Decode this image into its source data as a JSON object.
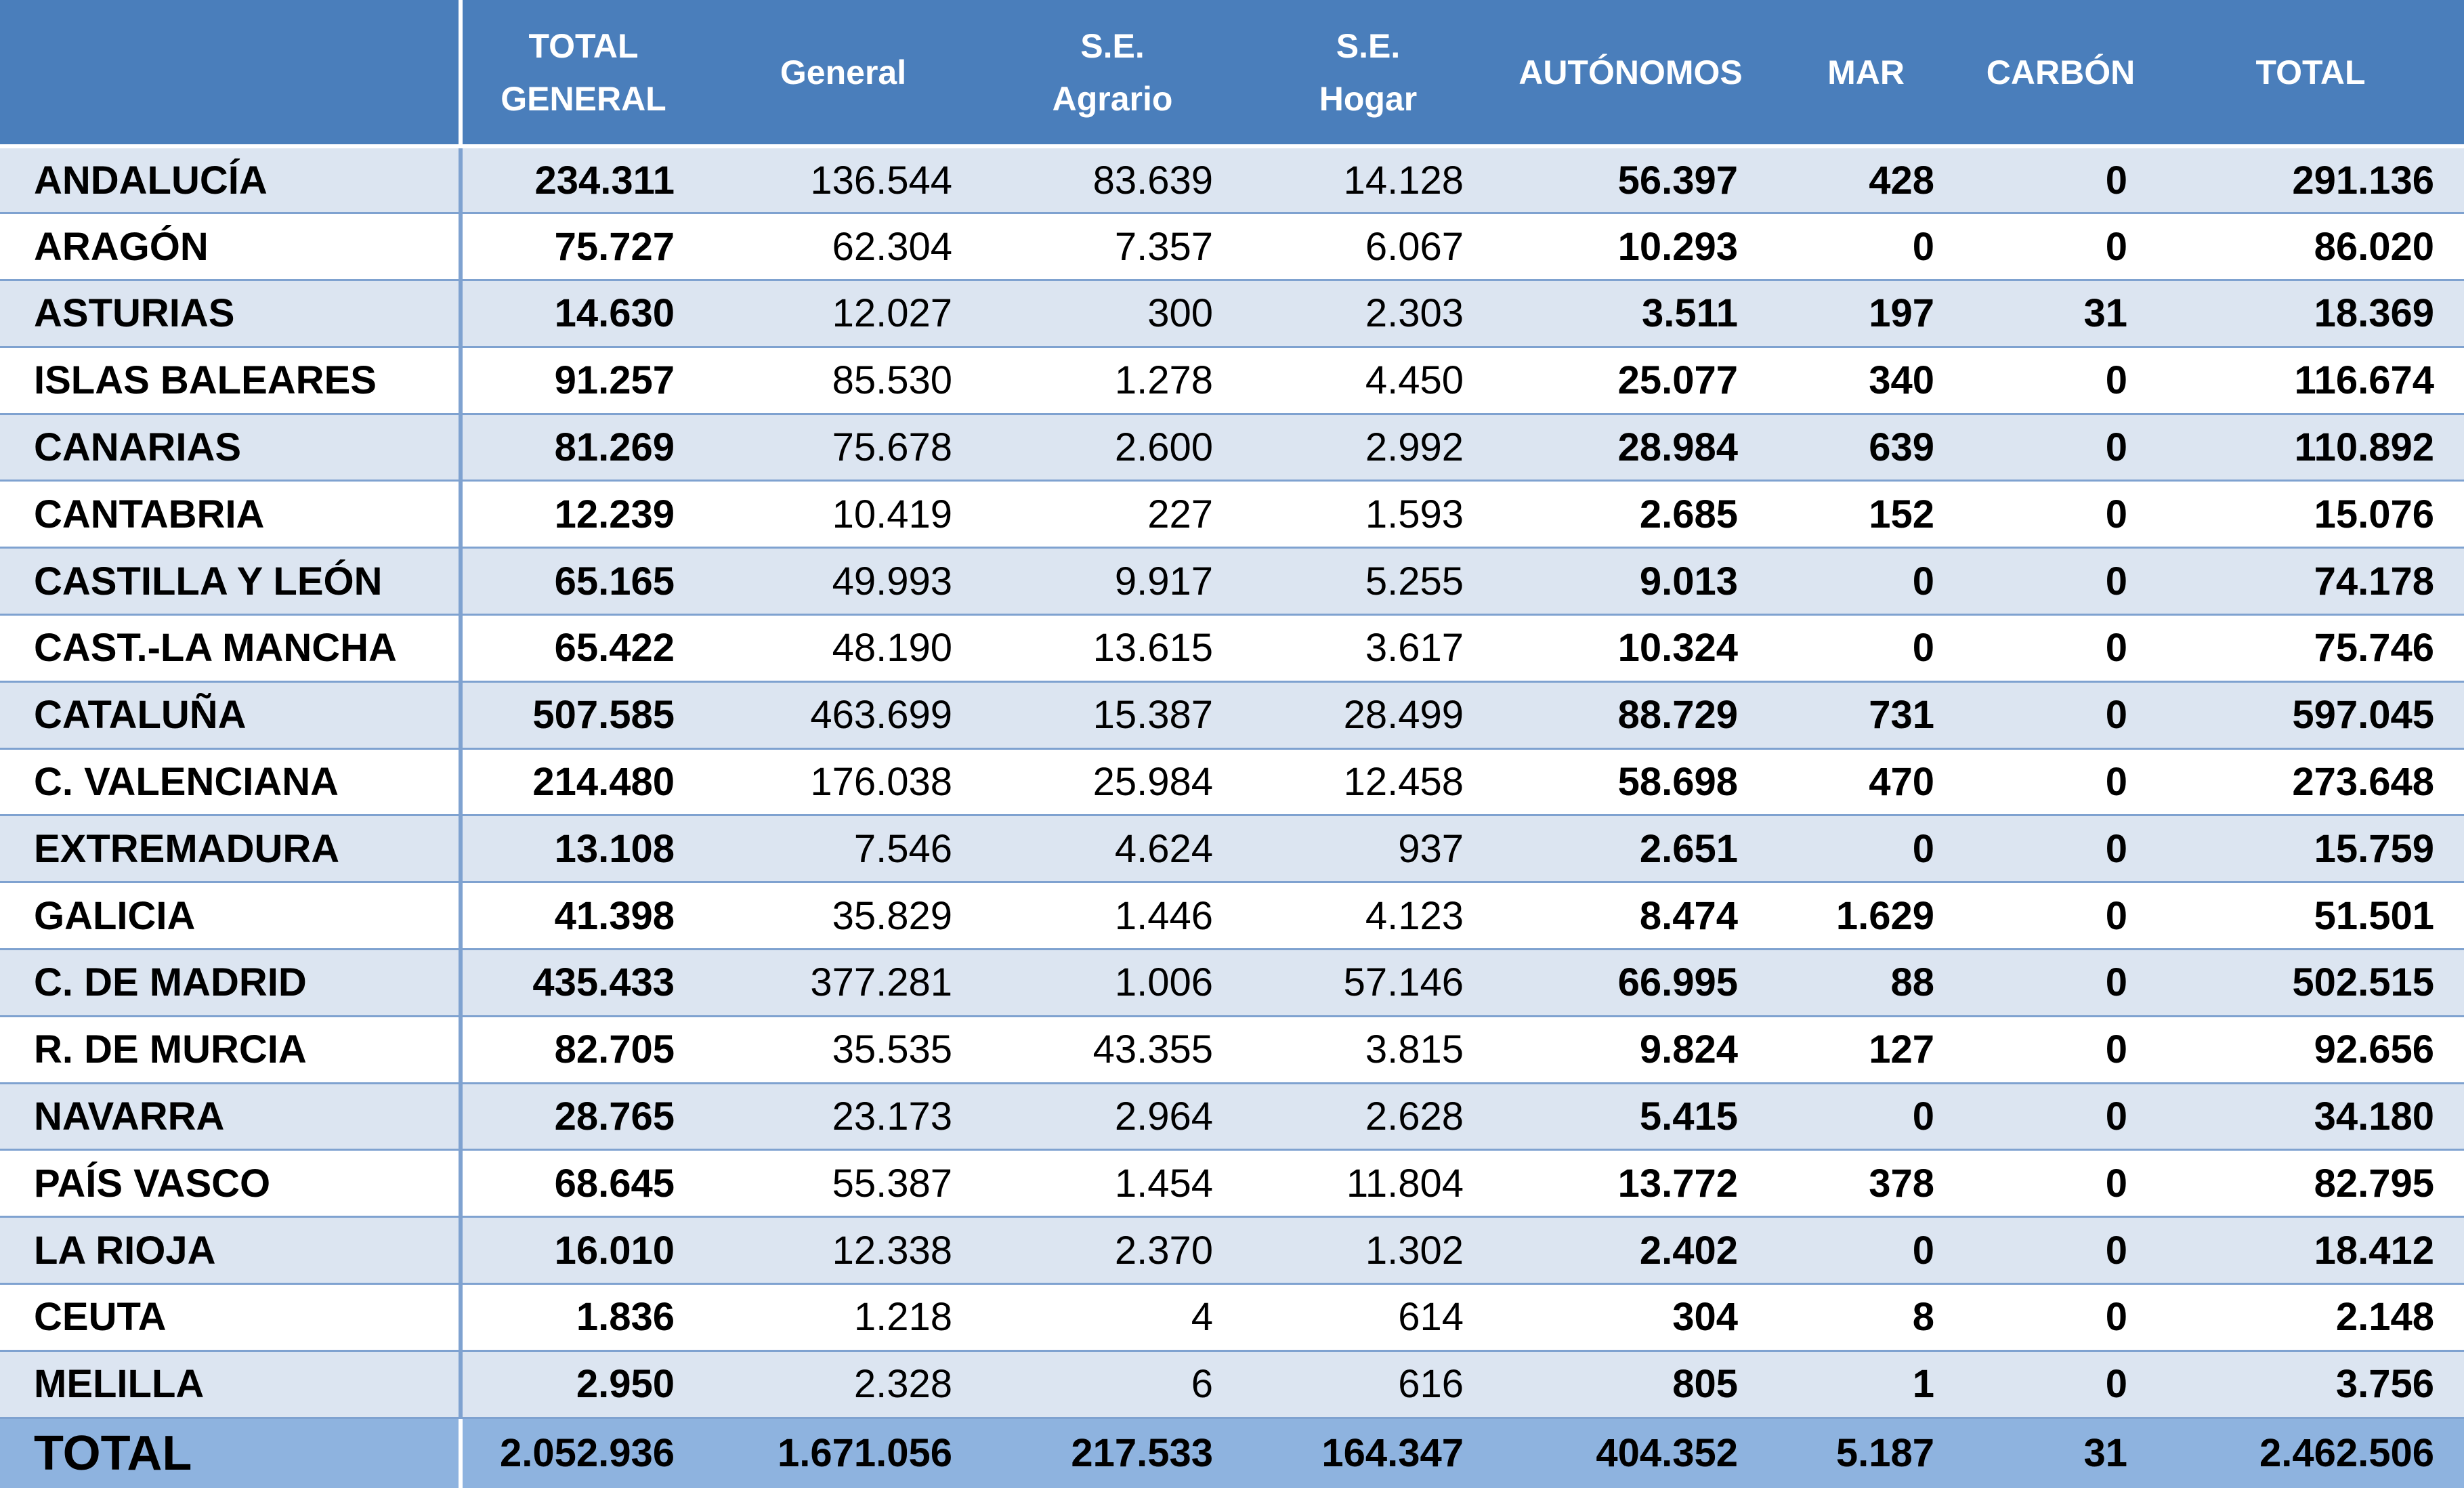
{
  "table": {
    "headers": [
      {
        "line1": "",
        "line2": ""
      },
      {
        "line1": "TOTAL",
        "line2": "GENERAL"
      },
      {
        "line1": "General",
        "line2": ""
      },
      {
        "line1": "S.E.",
        "line2": "Agrario"
      },
      {
        "line1": "S.E.",
        "line2": "Hogar"
      },
      {
        "line1": "AUTÓNOMOS",
        "line2": ""
      },
      {
        "line1": "MAR",
        "line2": ""
      },
      {
        "line1": "CARBÓN",
        "line2": ""
      },
      {
        "line1": "TOTAL",
        "line2": ""
      }
    ],
    "rows": [
      [
        "ANDALUCÍA",
        "234.311",
        "136.544",
        "83.639",
        "14.128",
        "56.397",
        "428",
        "0",
        "291.136"
      ],
      [
        "ARAGÓN",
        "75.727",
        "62.304",
        "7.357",
        "6.067",
        "10.293",
        "0",
        "0",
        "86.020"
      ],
      [
        "ASTURIAS",
        "14.630",
        "12.027",
        "300",
        "2.303",
        "3.511",
        "197",
        "31",
        "18.369"
      ],
      [
        "ISLAS BALEARES",
        "91.257",
        "85.530",
        "1.278",
        "4.450",
        "25.077",
        "340",
        "0",
        "116.674"
      ],
      [
        "CANARIAS",
        "81.269",
        "75.678",
        "2.600",
        "2.992",
        "28.984",
        "639",
        "0",
        "110.892"
      ],
      [
        "CANTABRIA",
        "12.239",
        "10.419",
        "227",
        "1.593",
        "2.685",
        "152",
        "0",
        "15.076"
      ],
      [
        "CASTILLA Y LEÓN",
        "65.165",
        "49.993",
        "9.917",
        "5.255",
        "9.013",
        "0",
        "0",
        "74.178"
      ],
      [
        "CAST.-LA MANCHA",
        "65.422",
        "48.190",
        "13.615",
        "3.617",
        "10.324",
        "0",
        "0",
        "75.746"
      ],
      [
        "CATALUÑA",
        "507.585",
        "463.699",
        "15.387",
        "28.499",
        "88.729",
        "731",
        "0",
        "597.045"
      ],
      [
        "C. VALENCIANA",
        "214.480",
        "176.038",
        "25.984",
        "12.458",
        "58.698",
        "470",
        "0",
        "273.648"
      ],
      [
        "EXTREMADURA",
        "13.108",
        "7.546",
        "4.624",
        "937",
        "2.651",
        "0",
        "0",
        "15.759"
      ],
      [
        "GALICIA",
        "41.398",
        "35.829",
        "1.446",
        "4.123",
        "8.474",
        "1.629",
        "0",
        "51.501"
      ],
      [
        "C. DE MADRID",
        "435.433",
        "377.281",
        "1.006",
        "57.146",
        "66.995",
        "88",
        "0",
        "502.515"
      ],
      [
        "R. DE MURCIA",
        "82.705",
        "35.535",
        "43.355",
        "3.815",
        "9.824",
        "127",
        "0",
        "92.656"
      ],
      [
        "NAVARRA",
        "28.765",
        "23.173",
        "2.964",
        "2.628",
        "5.415",
        "0",
        "0",
        "34.180"
      ],
      [
        "PAÍS VASCO",
        "68.645",
        "55.387",
        "1.454",
        "11.804",
        "13.772",
        "378",
        "0",
        "82.795"
      ],
      [
        "LA RIOJA",
        "16.010",
        "12.338",
        "2.370",
        "1.302",
        "2.402",
        "0",
        "0",
        "18.412"
      ],
      [
        "CEUTA",
        "1.836",
        "1.218",
        "4",
        "614",
        "304",
        "8",
        "0",
        "2.148"
      ],
      [
        "MELILLA",
        "2.950",
        "2.328",
        "6",
        "616",
        "805",
        "1",
        "0",
        "3.756"
      ]
    ],
    "total": [
      "TOTAL",
      "2.052.936",
      "1.671.056",
      "217.533",
      "164.347",
      "404.352",
      "5.187",
      "31",
      "2.462.506"
    ]
  },
  "colors": {
    "header_bg": "#4a7ebb",
    "stripe_bg": "#dce5f1",
    "total_bg": "#8eb3df",
    "row_border": "#7fa2d0"
  }
}
